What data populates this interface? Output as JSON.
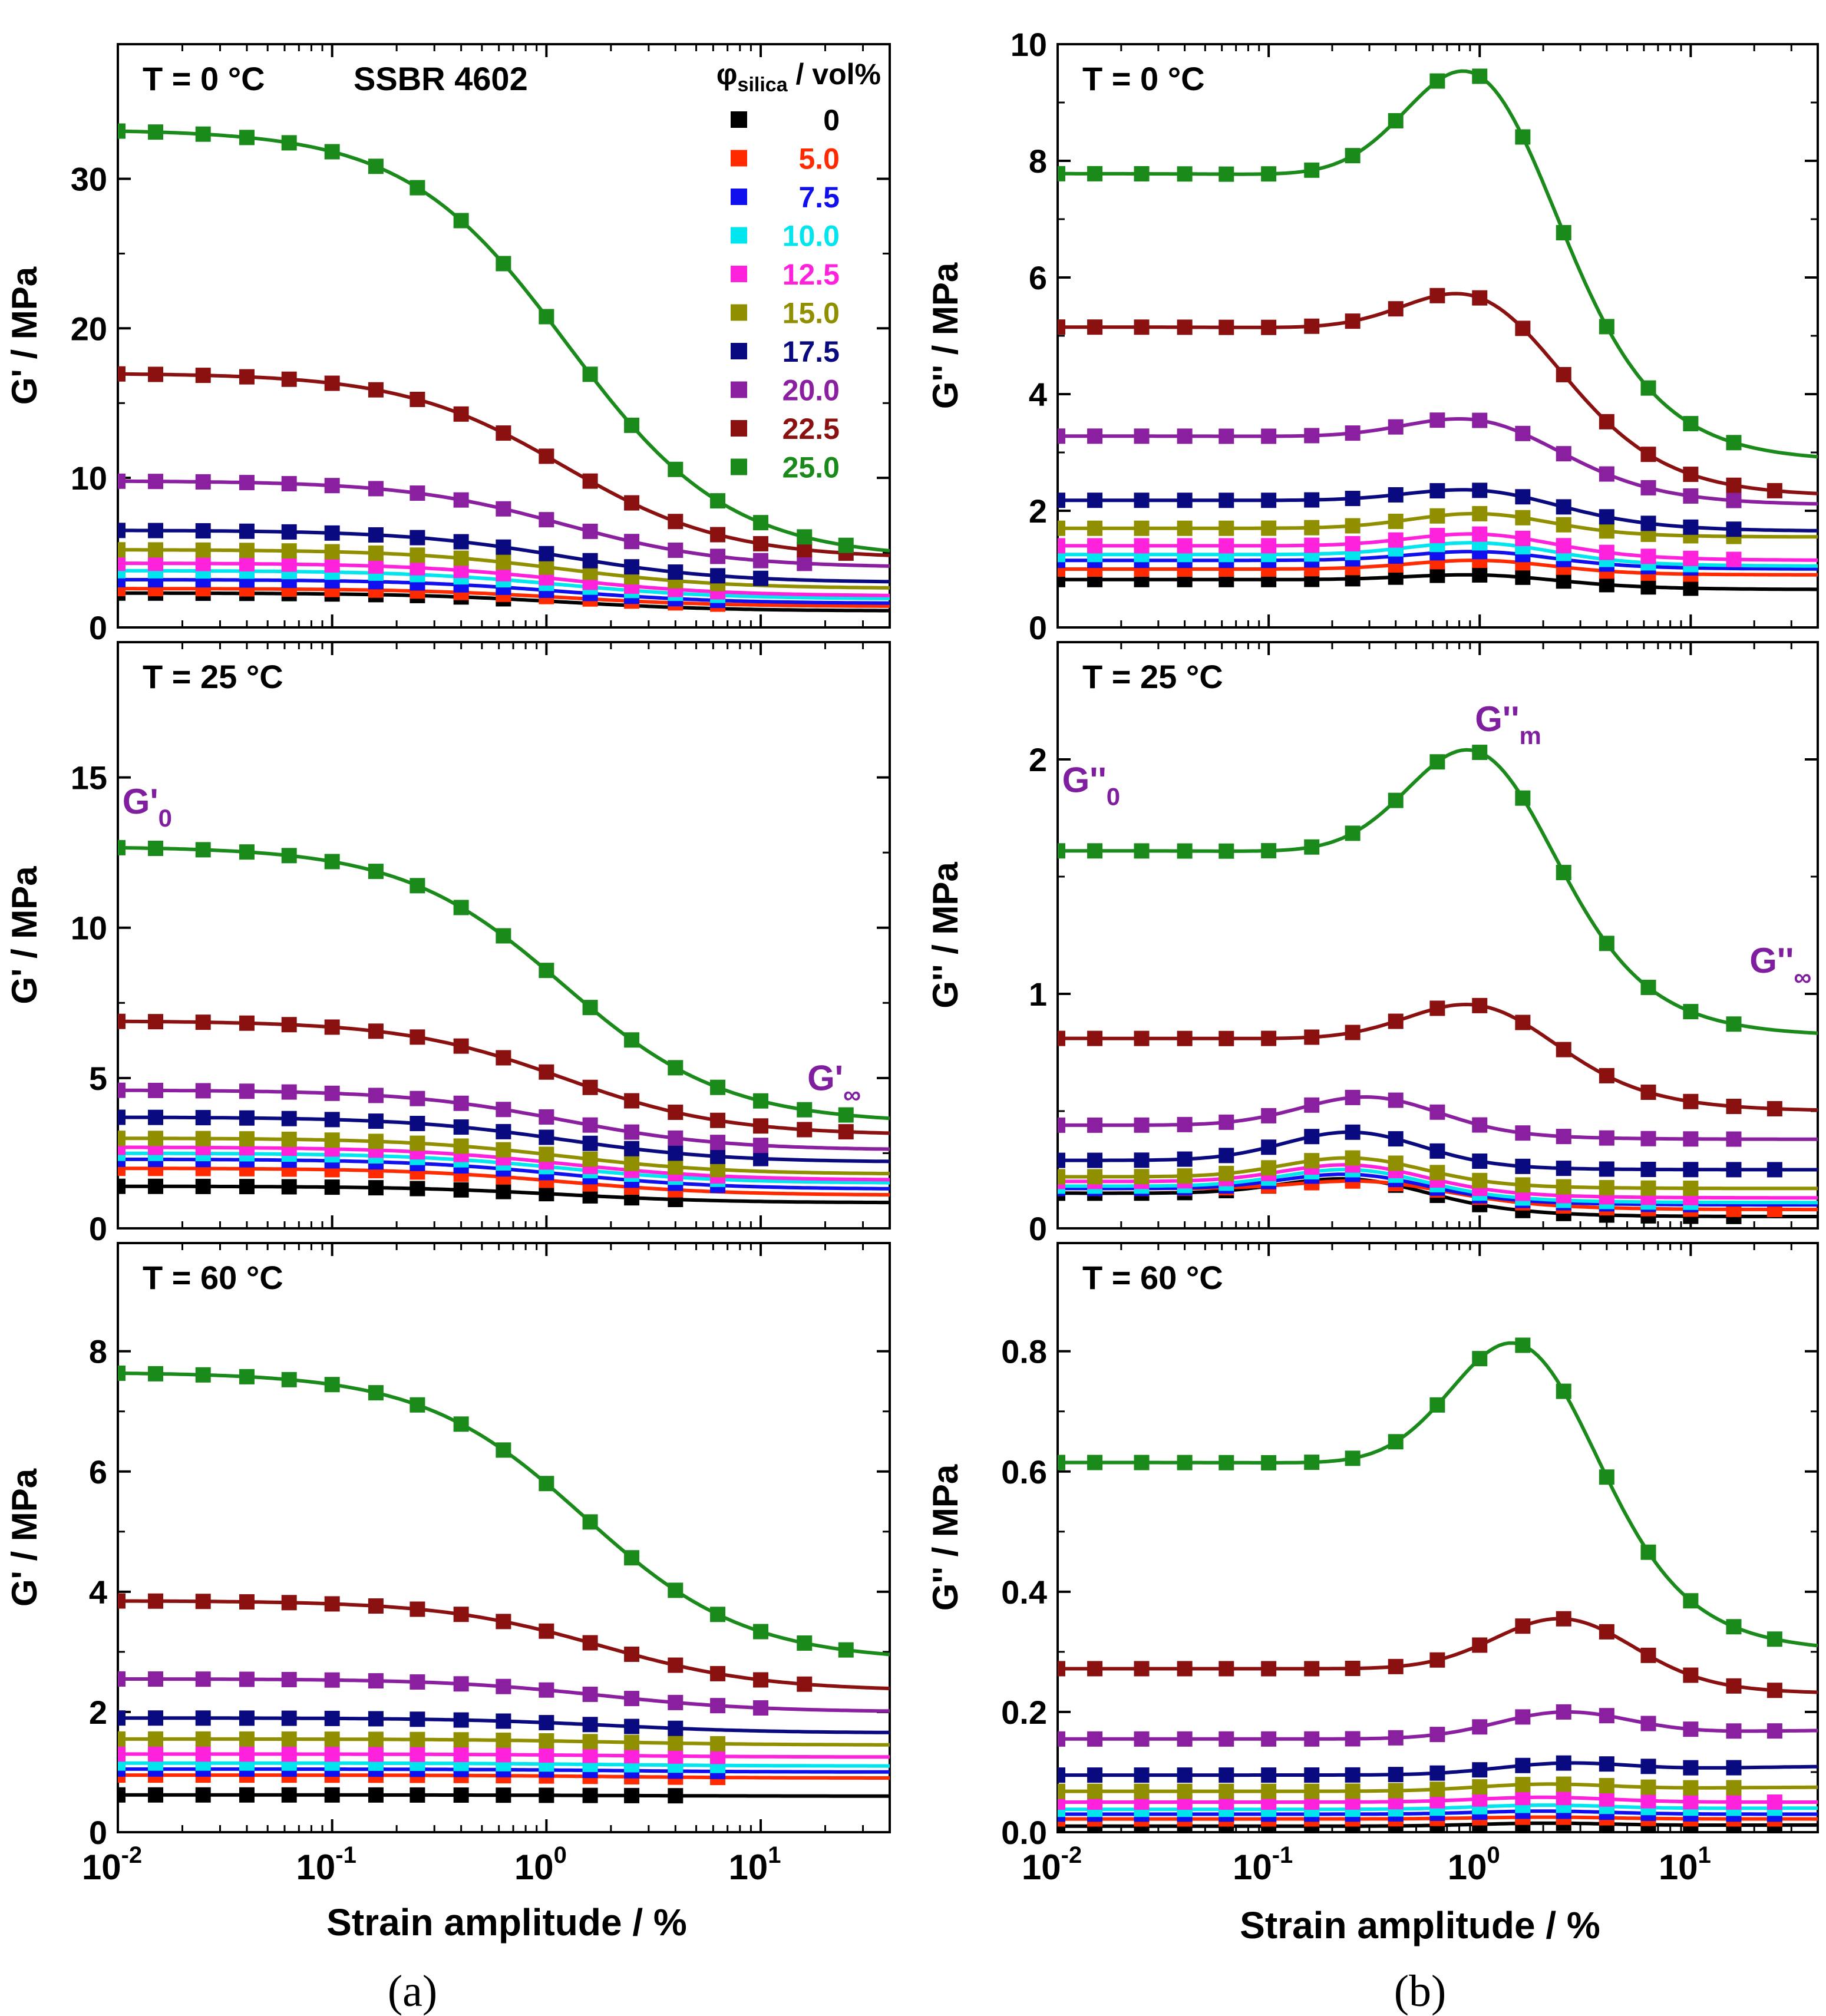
{
  "figure": {
    "captions": [
      "(a)",
      "(b)"
    ],
    "xlabel": "Strain amplitude / %",
    "xtick_labels": [
      {
        "base": "10",
        "exp": "-2"
      },
      {
        "base": "10",
        "exp": "-1"
      },
      {
        "base": "10",
        "exp": "0"
      },
      {
        "base": "10",
        "exp": "1"
      }
    ],
    "legend": {
      "title_main": "φ",
      "title_sub": "silica",
      "title_rest": " / vol%",
      "entries": [
        {
          "label": "0",
          "color": "#000000"
        },
        {
          "label": "5.0",
          "color": "#ff2a00"
        },
        {
          "label": "7.5",
          "color": "#1010ee"
        },
        {
          "label": "10.0",
          "color": "#00e5ee"
        },
        {
          "label": "12.5",
          "color": "#ff22dd"
        },
        {
          "label": "15.0",
          "color": "#8f8f00"
        },
        {
          "label": "17.5",
          "color": "#0a0a80"
        },
        {
          "label": "20.0",
          "color": "#8a1fa0"
        },
        {
          "label": "22.5",
          "color": "#8b1010"
        },
        {
          "label": "25.0",
          "color": "#1a8a1a"
        }
      ]
    },
    "sample_label": "SSBR 4602",
    "annot_color": "#7f1fa0"
  },
  "chart_data": [
    {
      "id": "a1",
      "type": "scatter+line",
      "panel": "(a) top",
      "title": "T = 0 °C",
      "ylabel": "G' / MPa",
      "x_scale": "log",
      "xlim": [
        0.01,
        40
      ],
      "ylim": [
        0,
        39
      ],
      "yticks": [
        0,
        10,
        20,
        30
      ],
      "x": [
        0.01,
        0.015,
        0.025,
        0.04,
        0.063,
        0.1,
        0.16,
        0.25,
        0.4,
        0.63,
        1.0,
        1.6,
        2.5,
        4.0,
        6.3,
        10,
        16,
        25
      ],
      "series": [
        {
          "name": "0",
          "G0": 2.3,
          "Ginf": 1.1,
          "mid": 1.2,
          "last_idx": 9
        },
        {
          "name": "5.0",
          "G0": 2.6,
          "Ginf": 1.4,
          "mid": 1.2,
          "last_idx": 14
        },
        {
          "name": "7.5",
          "G0": 3.2,
          "Ginf": 1.6,
          "mid": 1.2,
          "last_idx": 14
        },
        {
          "name": "10.0",
          "G0": 3.8,
          "Ginf": 1.9,
          "mid": 1.2,
          "last_idx": 14
        },
        {
          "name": "12.5",
          "G0": 4.3,
          "Ginf": 2.1,
          "mid": 1.2,
          "last_idx": 14
        },
        {
          "name": "15.0",
          "G0": 5.2,
          "Ginf": 2.6,
          "mid": 1.2,
          "last_idx": 14
        },
        {
          "name": "17.5",
          "G0": 6.5,
          "Ginf": 3.0,
          "mid": 1.2,
          "last_idx": 15
        },
        {
          "name": "20.0",
          "G0": 9.8,
          "Ginf": 4.0,
          "mid": 1.2,
          "last_idx": 16
        },
        {
          "name": "22.5",
          "G0": 17.0,
          "Ginf": 4.6,
          "mid": 1.2,
          "last_idx": 17
        },
        {
          "name": "25.0",
          "G0": 33.3,
          "Ginf": 4.6,
          "mid": 1.25,
          "last_idx": 17
        }
      ]
    },
    {
      "id": "a2",
      "type": "scatter+line",
      "panel": "(a) middle",
      "title": "T = 25 °C",
      "ylabel": "G' / MPa",
      "x_scale": "log",
      "xlim": [
        0.01,
        40
      ],
      "ylim": [
        0,
        19.5
      ],
      "yticks": [
        0,
        5,
        10,
        15
      ],
      "x": [
        0.01,
        0.015,
        0.025,
        0.04,
        0.063,
        0.1,
        0.16,
        0.25,
        0.4,
        0.63,
        1.0,
        1.6,
        2.5,
        4.0,
        6.3,
        10,
        16,
        25
      ],
      "series": [
        {
          "name": "0",
          "G0": 1.4,
          "Ginf": 0.85,
          "mid": 1.2,
          "last_idx": 13
        },
        {
          "name": "5.0",
          "G0": 2.0,
          "Ginf": 1.1,
          "mid": 1.2,
          "last_idx": 13
        },
        {
          "name": "7.5",
          "G0": 2.3,
          "Ginf": 1.3,
          "mid": 1.2,
          "last_idx": 14
        },
        {
          "name": "10.0",
          "G0": 2.5,
          "Ginf": 1.5,
          "mid": 1.2,
          "last_idx": 14
        },
        {
          "name": "12.5",
          "G0": 2.7,
          "Ginf": 1.6,
          "mid": 1.2,
          "last_idx": 14
        },
        {
          "name": "15.0",
          "G0": 3.0,
          "Ginf": 1.8,
          "mid": 1.2,
          "last_idx": 14
        },
        {
          "name": "17.5",
          "G0": 3.7,
          "Ginf": 2.2,
          "mid": 1.2,
          "last_idx": 15
        },
        {
          "name": "20.0",
          "G0": 4.6,
          "Ginf": 2.6,
          "mid": 1.2,
          "last_idx": 15
        },
        {
          "name": "22.5",
          "G0": 6.9,
          "Ginf": 3.1,
          "mid": 1.2,
          "last_idx": 17
        },
        {
          "name": "25.0",
          "G0": 12.7,
          "Ginf": 3.5,
          "mid": 1.2,
          "last_idx": 17
        }
      ],
      "annotations": [
        {
          "text": "G'",
          "sub": "0",
          "x": 0.0105,
          "y": 13.8
        },
        {
          "text": "G'",
          "sub": "∞",
          "x": 16.5,
          "y": 4.6
        }
      ]
    },
    {
      "id": "a3",
      "type": "scatter+line",
      "panel": "(a) bottom",
      "title": "T = 60 °C",
      "ylabel": "G' / MPa",
      "x_scale": "log",
      "xlim": [
        0.01,
        40
      ],
      "ylim": [
        0,
        9.8
      ],
      "yticks": [
        0,
        2,
        4,
        6,
        8
      ],
      "x": [
        0.01,
        0.015,
        0.025,
        0.04,
        0.063,
        0.1,
        0.16,
        0.25,
        0.4,
        0.63,
        1.0,
        1.6,
        2.5,
        4.0,
        6.3,
        10,
        16,
        25
      ],
      "series": [
        {
          "name": "0",
          "G0": 0.62,
          "Ginf": 0.6,
          "mid": 2.0,
          "last_idx": 13
        },
        {
          "name": "5.0",
          "G0": 0.95,
          "Ginf": 0.9,
          "mid": 2.0,
          "last_idx": 14
        },
        {
          "name": "7.5",
          "G0": 1.05,
          "Ginf": 1.0,
          "mid": 2.0,
          "last_idx": 14
        },
        {
          "name": "10.0",
          "G0": 1.15,
          "Ginf": 1.1,
          "mid": 2.0,
          "last_idx": 14
        },
        {
          "name": "12.5",
          "G0": 1.3,
          "Ginf": 1.25,
          "mid": 2.0,
          "last_idx": 14
        },
        {
          "name": "15.0",
          "G0": 1.55,
          "Ginf": 1.45,
          "mid": 2.0,
          "last_idx": 14
        },
        {
          "name": "17.5",
          "G0": 1.9,
          "Ginf": 1.65,
          "mid": 2.0,
          "last_idx": 13
        },
        {
          "name": "20.0",
          "G0": 2.55,
          "Ginf": 2.0,
          "mid": 1.8,
          "last_idx": 15
        },
        {
          "name": "22.5",
          "G0": 3.85,
          "Ginf": 2.35,
          "mid": 1.8,
          "last_idx": 16
        },
        {
          "name": "25.0",
          "G0": 7.65,
          "Ginf": 2.85,
          "mid": 1.5,
          "last_idx": 17
        }
      ]
    },
    {
      "id": "b1",
      "type": "scatter+line",
      "panel": "(b) top",
      "title": "T = 0 °C",
      "ylabel": "G'' / MPa",
      "x_scale": "log",
      "xlim": [
        0.01,
        40
      ],
      "ylim": [
        0,
        10
      ],
      "yticks": [
        0,
        2,
        4,
        6,
        8,
        10
      ],
      "x": [
        0.01,
        0.015,
        0.025,
        0.04,
        0.063,
        0.1,
        0.16,
        0.25,
        0.4,
        0.63,
        1.0,
        1.6,
        2.5,
        4.0,
        6.3,
        10,
        16,
        25
      ],
      "series": [
        {
          "name": "0",
          "G0": 0.82,
          "Gm": 0.9,
          "Ginf": 0.65,
          "mid": 1.0,
          "last_idx": 15
        },
        {
          "name": "5.0",
          "G0": 1.0,
          "Gm": 1.15,
          "Ginf": 0.9,
          "mid": 1.0,
          "last_idx": 15
        },
        {
          "name": "7.5",
          "G0": 1.15,
          "Gm": 1.3,
          "Ginf": 1.0,
          "mid": 1.0,
          "last_idx": 15
        },
        {
          "name": "10.0",
          "G0": 1.25,
          "Gm": 1.45,
          "Ginf": 1.05,
          "mid": 1.0,
          "last_idx": 15
        },
        {
          "name": "12.5",
          "G0": 1.4,
          "Gm": 1.6,
          "Ginf": 1.15,
          "mid": 1.0,
          "last_idx": 16
        },
        {
          "name": "15.0",
          "G0": 1.7,
          "Gm": 1.95,
          "Ginf": 1.55,
          "mid": 1.0,
          "last_idx": 16
        },
        {
          "name": "17.5",
          "G0": 2.18,
          "Gm": 2.35,
          "Ginf": 1.65,
          "mid": 1.0,
          "last_idx": 16
        },
        {
          "name": "20.0",
          "G0": 3.28,
          "Gm": 3.55,
          "Ginf": 2.1,
          "mid": 1.0,
          "last_idx": 16
        },
        {
          "name": "22.5",
          "G0": 5.15,
          "Gm": 5.65,
          "Ginf": 2.25,
          "mid": 1.0,
          "last_idx": 17
        },
        {
          "name": "25.0",
          "G0": 7.78,
          "Gm": 9.45,
          "Ginf": 2.85,
          "mid": 1.0,
          "last_idx": 16
        }
      ]
    },
    {
      "id": "b2",
      "type": "scatter+line",
      "panel": "(b) middle",
      "title": "T = 25 °C",
      "ylabel": "G'' / MPa",
      "x_scale": "log",
      "xlim": [
        0.01,
        40
      ],
      "ylim": [
        0,
        2.5
      ],
      "yticks": [
        0,
        1,
        2
      ],
      "x": [
        0.01,
        0.015,
        0.025,
        0.04,
        0.063,
        0.1,
        0.16,
        0.25,
        0.4,
        0.63,
        1.0,
        1.6,
        2.5,
        4.0,
        6.3,
        10,
        16,
        25
      ],
      "series": [
        {
          "name": "0",
          "G0": 0.15,
          "Gm": 0.21,
          "Ginf": 0.05,
          "mid": 0.25,
          "last_idx": 16
        },
        {
          "name": "5.0",
          "G0": 0.17,
          "Gm": 0.2,
          "Ginf": 0.08,
          "mid": 0.3,
          "last_idx": 17
        },
        {
          "name": "7.5",
          "G0": 0.17,
          "Gm": 0.23,
          "Ginf": 0.1,
          "mid": 0.25,
          "last_idx": 15
        },
        {
          "name": "10.0",
          "G0": 0.18,
          "Gm": 0.25,
          "Ginf": 0.11,
          "mid": 0.25,
          "last_idx": 15
        },
        {
          "name": "12.5",
          "G0": 0.2,
          "Gm": 0.27,
          "Ginf": 0.13,
          "mid": 0.25,
          "last_idx": 15
        },
        {
          "name": "15.0",
          "G0": 0.22,
          "Gm": 0.3,
          "Ginf": 0.17,
          "mid": 0.25,
          "last_idx": 15
        },
        {
          "name": "17.5",
          "G0": 0.29,
          "Gm": 0.41,
          "Ginf": 0.25,
          "mid": 0.25,
          "last_idx": 17
        },
        {
          "name": "20.0",
          "G0": 0.44,
          "Gm": 0.56,
          "Ginf": 0.38,
          "mid": 0.3,
          "last_idx": 16
        },
        {
          "name": "22.5",
          "G0": 0.81,
          "Gm": 0.95,
          "Ginf": 0.5,
          "mid": 1.0,
          "last_idx": 17
        },
        {
          "name": "25.0",
          "G0": 1.61,
          "Gm": 2.03,
          "Ginf": 0.82,
          "mid": 1.0,
          "last_idx": 16
        }
      ],
      "annotations": [
        {
          "text": "G''",
          "sub": "0",
          "x": 0.0105,
          "y": 1.86
        },
        {
          "text": "G''",
          "sub": "m",
          "x": 0.95,
          "y": 2.12
        },
        {
          "text": "G''",
          "sub": "∞",
          "x": 19,
          "y": 1.09
        }
      ]
    },
    {
      "id": "b3",
      "type": "scatter+line",
      "panel": "(b) bottom",
      "title": "T = 60 °C",
      "ylabel": "G'' / MPa",
      "x_scale": "log",
      "xlim": [
        0.01,
        40
      ],
      "ylim": [
        0,
        0.98
      ],
      "yticks": [
        0.0,
        0.2,
        0.4,
        0.6,
        0.8
      ],
      "ytick_labels": [
        "0.0",
        "0.2",
        "0.4",
        "0.6",
        "0.8"
      ],
      "x": [
        0.01,
        0.015,
        0.025,
        0.04,
        0.063,
        0.1,
        0.16,
        0.25,
        0.4,
        0.63,
        1.0,
        1.6,
        2.5,
        4.0,
        6.3,
        10,
        16,
        25
      ],
      "series": [
        {
          "name": "0",
          "G0": 0.01,
          "Gm": 0.015,
          "Ginf": 0.012,
          "mid": 2.0,
          "last_idx": 17
        },
        {
          "name": "5.0",
          "G0": 0.022,
          "Gm": 0.025,
          "Ginf": 0.022,
          "mid": 2.0,
          "last_idx": 17
        },
        {
          "name": "7.5",
          "G0": 0.03,
          "Gm": 0.035,
          "Ginf": 0.03,
          "mid": 2.0,
          "last_idx": 17
        },
        {
          "name": "10.0",
          "G0": 0.038,
          "Gm": 0.045,
          "Ginf": 0.04,
          "mid": 2.0,
          "last_idx": 17
        },
        {
          "name": "12.5",
          "G0": 0.05,
          "Gm": 0.058,
          "Ginf": 0.05,
          "mid": 2.0,
          "last_idx": 17
        },
        {
          "name": "15.0",
          "G0": 0.068,
          "Gm": 0.08,
          "Ginf": 0.075,
          "mid": 2.0,
          "last_idx": 16
        },
        {
          "name": "17.5",
          "G0": 0.095,
          "Gm": 0.115,
          "Ginf": 0.11,
          "mid": 2.5,
          "last_idx": 16
        },
        {
          "name": "20.0",
          "G0": 0.155,
          "Gm": 0.2,
          "Ginf": 0.17,
          "mid": 2.5,
          "last_idx": 17
        },
        {
          "name": "22.5",
          "G0": 0.272,
          "Gm": 0.355,
          "Ginf": 0.23,
          "mid": 2.5,
          "last_idx": 17
        },
        {
          "name": "25.0",
          "G0": 0.615,
          "Gm": 0.81,
          "Ginf": 0.3,
          "mid": 1.6,
          "last_idx": 17
        }
      ]
    }
  ]
}
